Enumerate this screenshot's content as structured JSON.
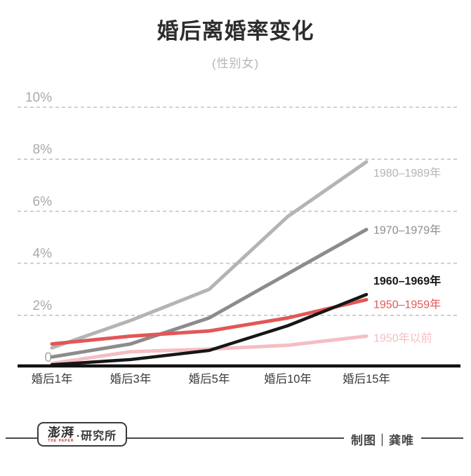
{
  "header": {
    "title": "婚后离婚率变化",
    "subtitle": "(性别女)"
  },
  "chart_data": {
    "type": "line",
    "title": "婚后离婚率变化",
    "subtitle": "(性别女)",
    "categories": [
      "婚后1年",
      "婚后3年",
      "婚后5年",
      "婚后10年",
      "婚后15年"
    ],
    "unit": "%",
    "ylim": [
      0,
      10
    ],
    "yticks": [
      {
        "label": "10%",
        "value": 10
      },
      {
        "label": "8%",
        "value": 8
      },
      {
        "label": "6%",
        "value": 6
      },
      {
        "label": "4%",
        "value": 4
      },
      {
        "label": "2%",
        "value": 2
      },
      {
        "label": "0",
        "value": 0
      }
    ],
    "grid": "dashed-horizontal",
    "legend_position": "right-end-labels",
    "series": [
      {
        "name": "1980–1989年",
        "color": "#b4b4b4",
        "values": [
          0.75,
          1.8,
          3.0,
          5.8,
          7.9
        ]
      },
      {
        "name": "1970–1979年",
        "color": "#8c8c8c",
        "values": [
          0.4,
          0.9,
          1.9,
          3.6,
          5.3
        ]
      },
      {
        "name": "1960–1969年",
        "color": "#161616",
        "values": [
          0.1,
          0.3,
          0.65,
          1.6,
          2.8
        ]
      },
      {
        "name": "1950–1959年",
        "color": "#e25757",
        "values": [
          0.9,
          1.2,
          1.4,
          1.9,
          2.6
        ]
      },
      {
        "name": "1950年以前",
        "color": "#f4bec2",
        "values": [
          0.15,
          0.6,
          0.7,
          0.85,
          1.2
        ]
      }
    ]
  },
  "footer": {
    "logo_cn": "澎湃",
    "logo_sub": "THE PAPER",
    "logo_suffix": "·研究所",
    "credit": "制图｜龚唯"
  }
}
